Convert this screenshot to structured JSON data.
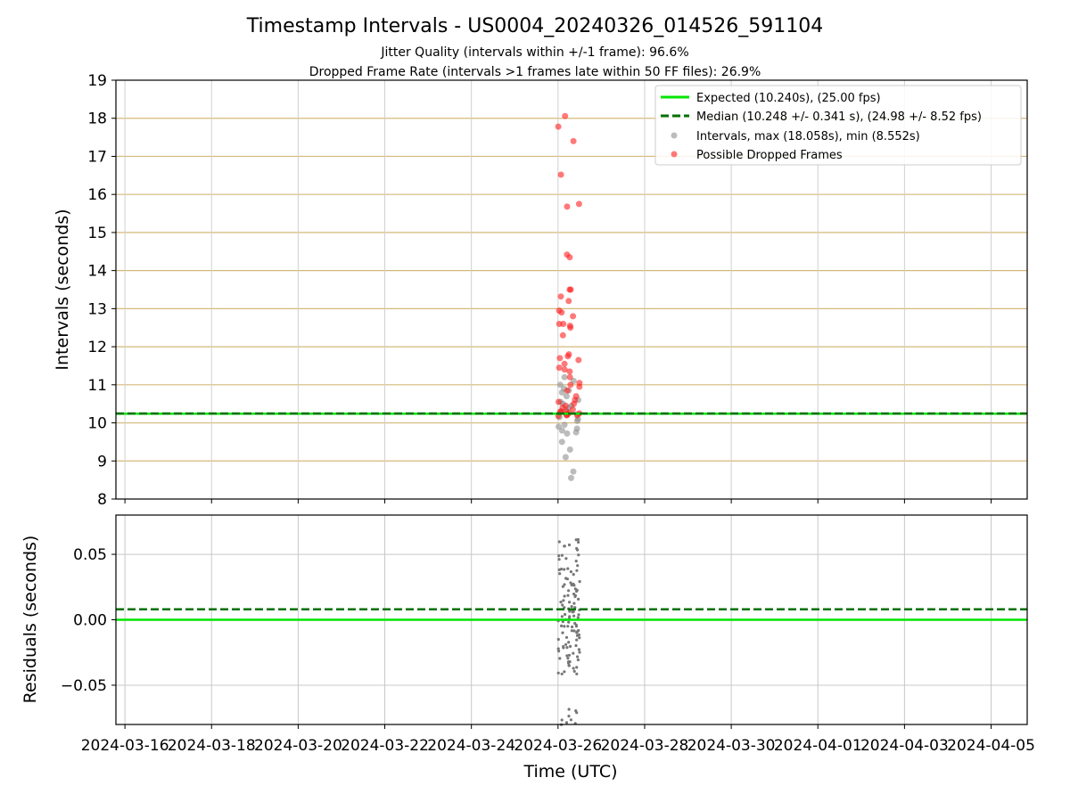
{
  "title": "Timestamp Intervals - US0004_20240326_014526_591104",
  "subtitle_lines": [
    "Jitter Quality (intervals within +/-1 frame): 96.6%",
    "Dropped Frame Rate (intervals >1 frames late within 50 FF files): 26.9%"
  ],
  "colors": {
    "expected": "#00e600",
    "median": "#007000",
    "intervals": "#909090",
    "dropped": "#ff2020",
    "grid_top": "#d4b979",
    "grid_bottom": "#c8c8c8"
  },
  "chart_data": [
    {
      "type": "scatter",
      "panel": "intervals",
      "xlabel": "",
      "ylabel": "Intervals (seconds)",
      "ylim": [
        8,
        19
      ],
      "yticks": [
        "8",
        "9",
        "10",
        "11",
        "12",
        "13",
        "14",
        "15",
        "16",
        "17",
        "18",
        "19"
      ],
      "x_range": [
        "2024-03-15T19:00",
        "2024-04-05T20:00"
      ],
      "grid": true,
      "legend_position": "top-right",
      "legend": [
        "Expected (10.240s), (25.00 fps)",
        "Median (10.248 +/- 0.341 s), (24.98 +/- 8.52 fps)",
        "Intervals, max (18.058s), min (8.552s)",
        "Possible Dropped Frames"
      ],
      "expected_interval": 10.24,
      "median_interval": 10.248,
      "series": [
        {
          "name": "Intervals, max (18.058s), min (8.552s)",
          "time_window": [
            "2024-03-26T00:00",
            "2024-03-26T12:00"
          ],
          "values": [
            10.05,
            10.1,
            10.15,
            10.2,
            10.22,
            10.3,
            10.35,
            10.4,
            10.45,
            10.5,
            10.55,
            10.6,
            10.7,
            10.8,
            10.85,
            10.9,
            11.0,
            11.1,
            11.2,
            9.95,
            9.9,
            9.85,
            9.8,
            9.75,
            9.72,
            9.5,
            9.3,
            9.1,
            8.72,
            8.552
          ]
        },
        {
          "name": "Possible Dropped Frames",
          "time_window": [
            "2024-03-26T00:00",
            "2024-03-26T12:00"
          ],
          "values": [
            18.058,
            17.78,
            17.4,
            16.52,
            15.75,
            15.68,
            14.42,
            14.35,
            13.5,
            13.5,
            13.32,
            13.2,
            12.95,
            12.9,
            12.8,
            12.6,
            12.6,
            12.55,
            12.5,
            12.3,
            11.8,
            11.75,
            11.7,
            11.65,
            11.55,
            11.45,
            11.4,
            11.35,
            11.2,
            11.05,
            11.0,
            10.95,
            10.85,
            10.7,
            10.6,
            10.55,
            10.5,
            10.45,
            10.4,
            10.35,
            10.3,
            10.3,
            10.28,
            10.25,
            10.25,
            10.22,
            10.2,
            10.2,
            10.18
          ]
        }
      ]
    },
    {
      "type": "scatter",
      "panel": "residuals",
      "xlabel": "Time (UTC)",
      "ylabel": "Residuals (seconds)",
      "ylim": [
        -0.08,
        0.08
      ],
      "yticks": [
        "−0.05",
        "0.00",
        "0.05"
      ],
      "ytick_values": [
        -0.05,
        0.0,
        0.05
      ],
      "xticks": [
        "2024-03-16",
        "2024-03-18",
        "2024-03-20",
        "2024-03-22",
        "2024-03-24",
        "2024-03-26",
        "2024-03-28",
        "2024-03-30",
        "2024-04-01",
        "2024-04-03",
        "2024-04-05"
      ],
      "grid": true,
      "expected_residual": 0.0,
      "median_residual": 0.008,
      "series": [
        {
          "name": "Residuals",
          "time_window": [
            "2024-03-26T00:00",
            "2024-03-26T12:00"
          ],
          "values": [
            0.06,
            0.058,
            0.055,
            0.05,
            0.045,
            0.04,
            0.038,
            0.035,
            0.03,
            0.028,
            0.025,
            0.022,
            0.02,
            0.018,
            0.015,
            0.012,
            0.01,
            0.008,
            0.006,
            0.004,
            0.002,
            0.0,
            -0.002,
            -0.004,
            -0.006,
            -0.008,
            -0.01,
            -0.012,
            -0.015,
            -0.018,
            -0.02,
            -0.022,
            -0.025,
            -0.028,
            -0.03,
            -0.033,
            -0.036,
            -0.038,
            -0.042,
            -0.07,
            -0.075,
            -0.08
          ]
        }
      ]
    }
  ]
}
